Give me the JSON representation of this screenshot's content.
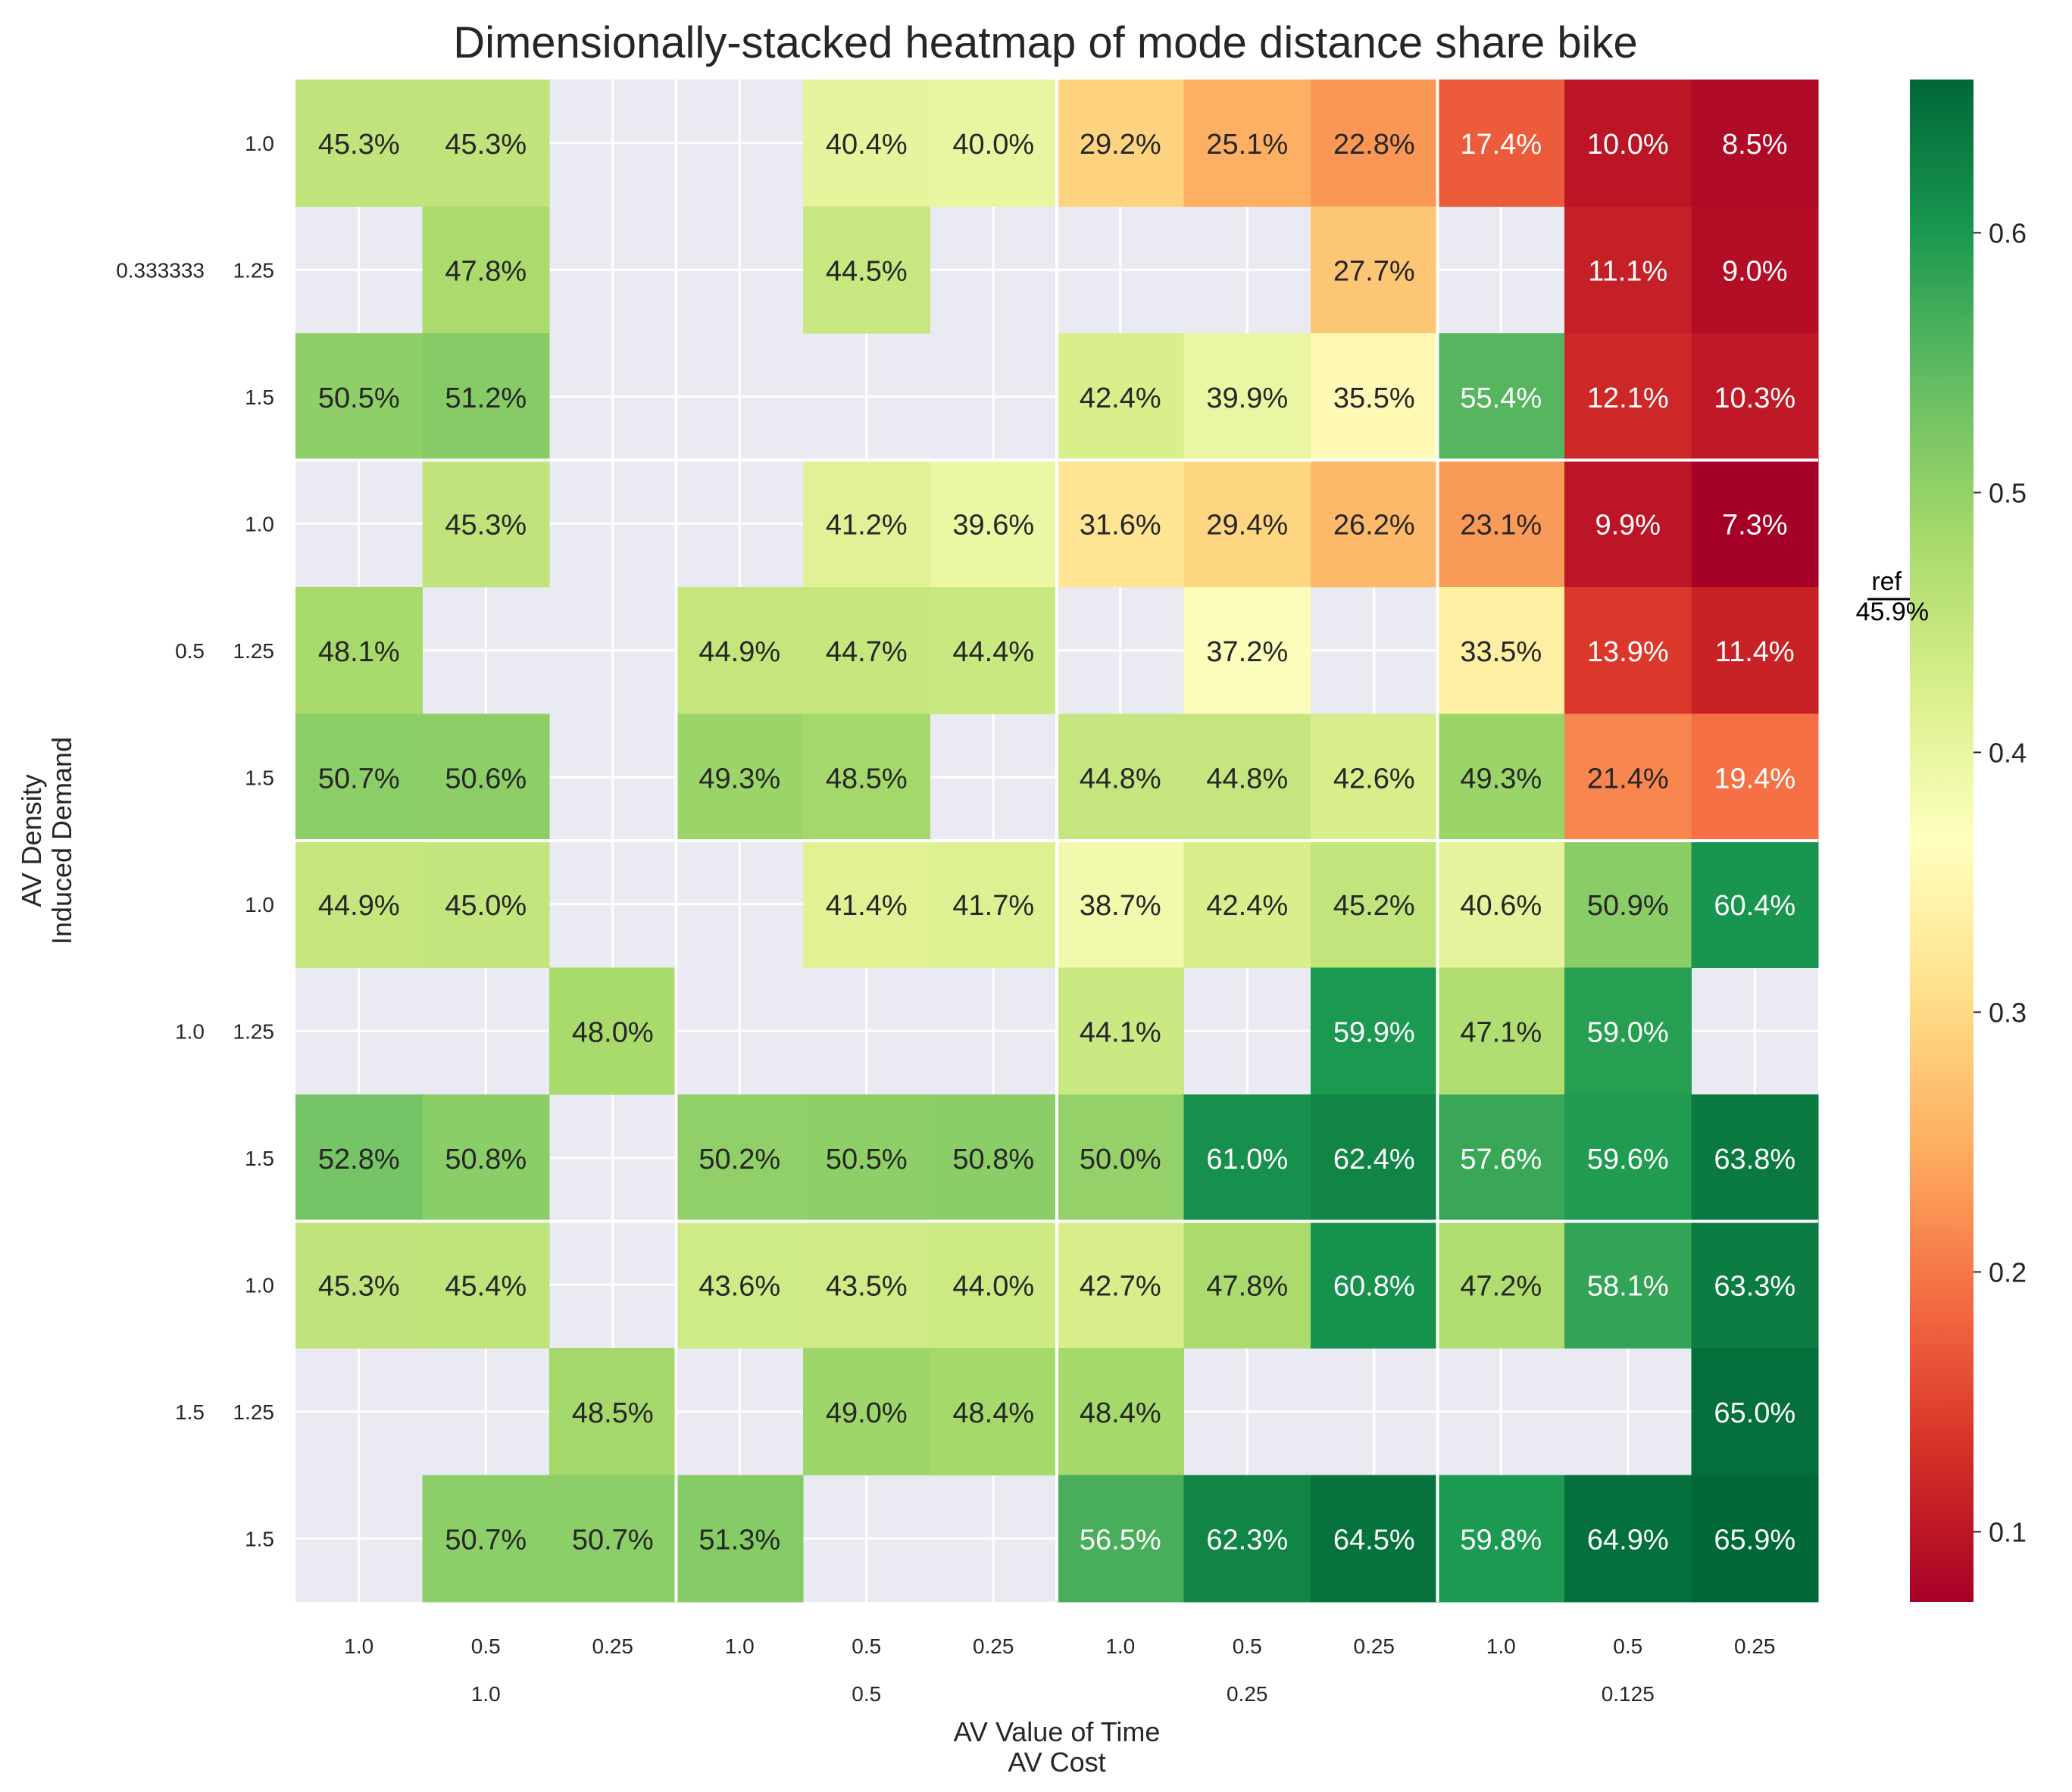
{
  "chart_data": {
    "type": "heatmap",
    "title": "Dimensionally-stacked heatmap of mode distance share bike",
    "xlabel_lines": [
      "AV Value of Time",
      "AV Cost"
    ],
    "ylabel_lines": [
      "AV Density",
      "Induced Demand"
    ],
    "x_outer": [
      "1.0",
      "0.5",
      "0.25",
      "0.125"
    ],
    "x_inner": [
      "1.0",
      "0.5",
      "0.25"
    ],
    "y_outer": [
      "0.333333",
      "0.5",
      "1.0",
      "1.5"
    ],
    "y_inner": [
      "1.0",
      "1.25",
      "1.5"
    ],
    "values": [
      [
        45.3,
        45.3,
        null,
        null,
        40.4,
        40.0,
        29.2,
        25.1,
        22.8,
        17.4,
        10.0,
        8.5
      ],
      [
        null,
        47.8,
        null,
        null,
        44.5,
        null,
        null,
        null,
        27.7,
        null,
        11.1,
        9.0
      ],
      [
        50.5,
        51.2,
        null,
        null,
        null,
        null,
        42.4,
        39.9,
        35.5,
        55.4,
        12.1,
        10.3
      ],
      [
        null,
        45.3,
        null,
        null,
        41.2,
        39.6,
        31.6,
        29.4,
        26.2,
        23.1,
        9.9,
        7.3
      ],
      [
        48.1,
        null,
        null,
        44.9,
        44.7,
        44.4,
        null,
        37.2,
        null,
        33.5,
        13.9,
        11.4
      ],
      [
        50.7,
        50.6,
        null,
        49.3,
        48.5,
        null,
        44.8,
        44.8,
        42.6,
        49.3,
        21.4,
        19.4
      ],
      [
        44.9,
        45.0,
        null,
        null,
        41.4,
        41.7,
        38.7,
        42.4,
        45.2,
        40.6,
        50.9,
        60.4
      ],
      [
        null,
        null,
        48.0,
        null,
        null,
        null,
        44.1,
        null,
        59.9,
        47.1,
        59.0,
        null
      ],
      [
        52.8,
        50.8,
        null,
        50.2,
        50.5,
        50.8,
        50.0,
        61.0,
        62.4,
        57.6,
        59.6,
        63.8
      ],
      [
        45.3,
        45.4,
        null,
        43.6,
        43.5,
        44.0,
        42.7,
        47.8,
        60.8,
        47.2,
        58.1,
        63.3
      ],
      [
        null,
        null,
        48.5,
        null,
        49.0,
        48.4,
        48.4,
        null,
        null,
        null,
        null,
        65.0
      ],
      [
        null,
        50.7,
        50.7,
        51.3,
        null,
        null,
        56.5,
        62.3,
        64.5,
        59.8,
        64.9,
        65.9
      ]
    ],
    "value_suffix": "%",
    "colorbar": {
      "cmap": "RdYlGn",
      "range": [
        0.073,
        0.659
      ],
      "ticks": [
        "0.1",
        "0.2",
        "0.3",
        "0.4",
        "0.5",
        "0.6"
      ],
      "ref_label": "ref",
      "ref_value": "45.9%"
    },
    "missing_color": "#eaeaf2",
    "grid": true
  }
}
